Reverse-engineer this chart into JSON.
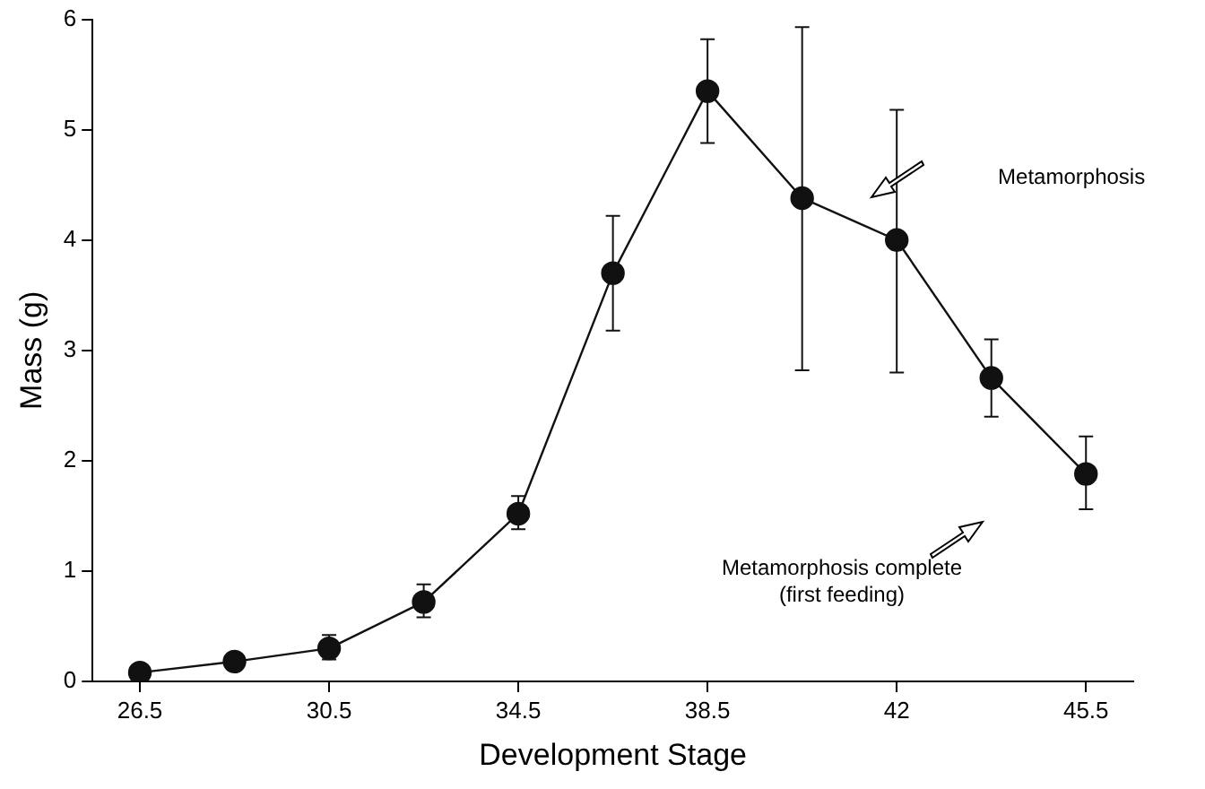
{
  "chart_data": {
    "type": "line",
    "xlabel": "Development Stage",
    "ylabel": "Mass (g)",
    "categories": [
      "26.5",
      null,
      "30.5",
      null,
      "34.5",
      null,
      "38.5",
      null,
      "42",
      null,
      "45.5"
    ],
    "series": [
      {
        "color": "#111111",
        "values": [
          0.08,
          0.18,
          0.3,
          0.72,
          1.52,
          3.7,
          5.35,
          4.38,
          4.0,
          2.75,
          1.88
        ],
        "errors": [
          null,
          null,
          [
            0.2,
            0.42
          ],
          [
            0.58,
            0.88
          ],
          [
            1.38,
            1.68
          ],
          [
            3.18,
            4.22
          ],
          [
            4.88,
            5.82
          ],
          [
            2.82,
            5.93
          ],
          [
            2.8,
            5.18
          ],
          [
            2.4,
            3.1
          ],
          [
            1.56,
            2.22
          ]
        ]
      }
    ],
    "ylim": [
      0,
      6
    ],
    "yticks": [
      0,
      1,
      2,
      3,
      4,
      5,
      6
    ],
    "marker": "circle",
    "line_style": "solid",
    "legend": false,
    "grid": false,
    "annotations": [
      "Metamorphosis",
      "Metamorphosis complete\n(first feeding)"
    ]
  }
}
